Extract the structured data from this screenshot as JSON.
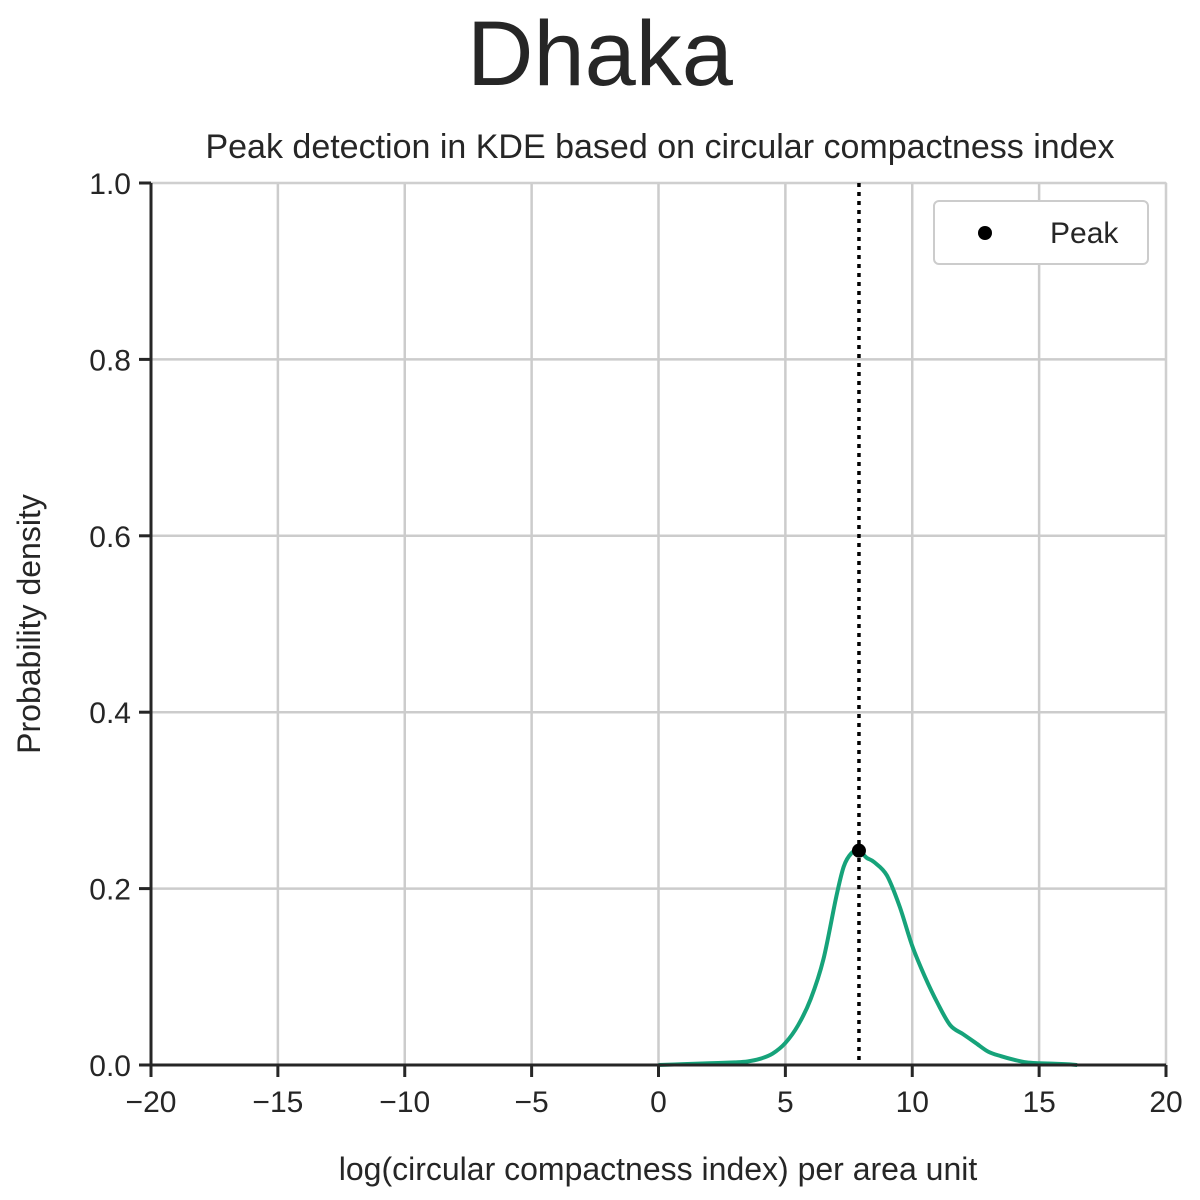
{
  "chart_data": {
    "type": "line",
    "title": "Dhaka",
    "subtitle": "Peak detection in KDE based on circular compactness index",
    "xlabel": "log(circular compactness index) per area unit",
    "ylabel": "Probability density",
    "xlim": [
      -20,
      20
    ],
    "ylim": [
      0,
      1.0
    ],
    "xticks": [
      -20,
      -15,
      -10,
      -5,
      0,
      5,
      10,
      15,
      20
    ],
    "xtick_labels": [
      "−20",
      "−15",
      "−10",
      "−5",
      "0",
      "5",
      "10",
      "15",
      "20"
    ],
    "yticks": [
      0,
      0.2,
      0.4,
      0.6,
      0.8,
      1.0
    ],
    "ytick_labels": [
      "0.0",
      "0.2",
      "0.4",
      "0.6",
      "0.8",
      "1.0"
    ],
    "grid": true,
    "legend": {
      "position": "top-right",
      "entries": [
        {
          "label": "Peak",
          "marker": "circle",
          "color": "#000000"
        }
      ]
    },
    "series": [
      {
        "type": "kde-line",
        "color": "#16a37a",
        "x": [
          0,
          1,
          2,
          3,
          3.5,
          4,
          4.5,
          5,
          5.5,
          6,
          6.5,
          7,
          7.3,
          7.6,
          7.9,
          8.2,
          8.5,
          9,
          9.5,
          10,
          10.5,
          11,
          11.5,
          12,
          12.5,
          13,
          13.5,
          14,
          14.5,
          15,
          16,
          16.5
        ],
        "y": [
          0,
          0.001,
          0.002,
          0.003,
          0.004,
          0.007,
          0.013,
          0.025,
          0.045,
          0.075,
          0.12,
          0.19,
          0.225,
          0.24,
          0.243,
          0.235,
          0.23,
          0.215,
          0.18,
          0.135,
          0.1,
          0.07,
          0.045,
          0.035,
          0.025,
          0.015,
          0.01,
          0.006,
          0.003,
          0.002,
          0.001,
          0
        ]
      }
    ],
    "peak": {
      "x": 7.9,
      "y": 0.243,
      "color": "#000000",
      "label": "Peak"
    },
    "vline": {
      "x": 7.9,
      "style": "dotted",
      "color": "#000000"
    }
  }
}
